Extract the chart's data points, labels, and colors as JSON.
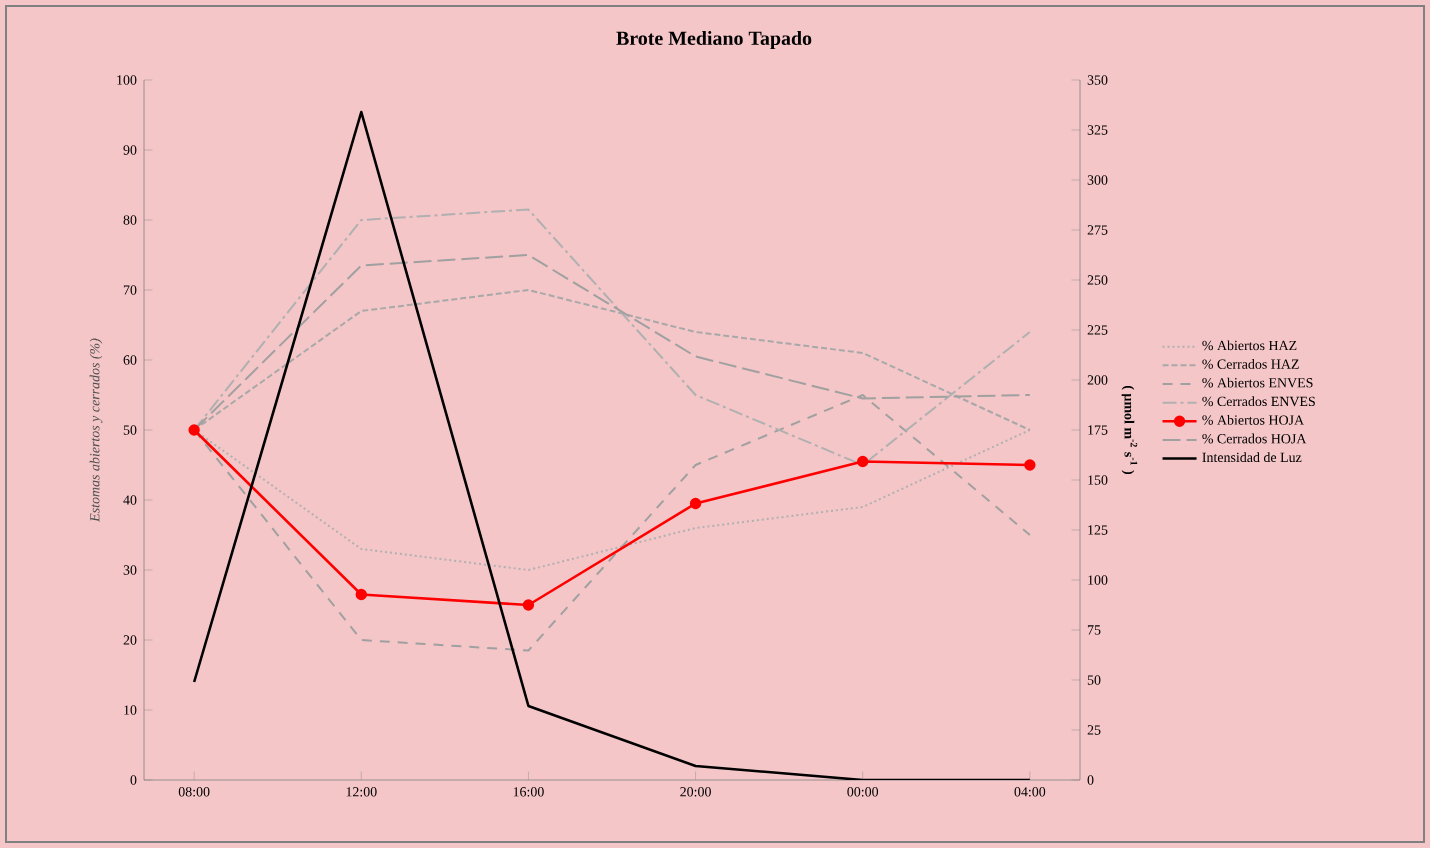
{
  "chart_data": {
    "type": "line",
    "title": "Brote Mediano Tapado",
    "ylabel": "Estomas abiertos y cerrados (%)",
    "y2label": "( µmol m$^{-2}$ s$^{-1}$ )",
    "categories": [
      "08:00",
      "12:00",
      "16:00",
      "20:00",
      "00:00",
      "04:00"
    ],
    "ylim": [
      0,
      100
    ],
    "yticks": [
      0,
      10,
      20,
      30,
      40,
      50,
      60,
      70,
      80,
      90,
      100
    ],
    "y2lim": [
      0,
      350
    ],
    "y2ticks": [
      0,
      25,
      50,
      75,
      100,
      125,
      150,
      175,
      200,
      225,
      250,
      275,
      300,
      325,
      350
    ],
    "legend": "right",
    "grid": false,
    "series": [
      {
        "name": "% Abiertos HAZ",
        "color": "#b0b0b0",
        "line_style": "dotted",
        "marker": "none",
        "values": [
          50,
          33,
          30,
          36,
          39,
          50
        ]
      },
      {
        "name": "% Cerrados HAZ",
        "color": "#a8a8a8",
        "line_style": "dashed",
        "marker": "none",
        "values": [
          50,
          67,
          70,
          64,
          61,
          50
        ]
      },
      {
        "name": "% Abiertos ENVES",
        "color": "#a0a0a0",
        "line_style": "dashed",
        "marker": "none",
        "values": [
          50,
          20,
          18.5,
          45,
          55,
          35
        ]
      },
      {
        "name": "% Cerrados ENVES",
        "color": "#b0b0b0",
        "line_style": "dashdot",
        "marker": "none",
        "values": [
          50,
          80,
          81.5,
          55,
          45,
          64
        ]
      },
      {
        "name": "% Abiertos HOJA",
        "color": "#ff0000",
        "line_style": "solid",
        "marker": "circle",
        "values": [
          50,
          26.5,
          25,
          39.5,
          45.5,
          45
        ]
      },
      {
        "name": "% Cerrados HOJA",
        "color": "#a0a0a0",
        "line_style": "dashed",
        "marker": "none",
        "values": [
          50,
          73.5,
          75,
          60.5,
          54.5,
          55
        ]
      },
      {
        "name": "Intensidad de Luz",
        "color": "#000000",
        "line_style": "solid",
        "marker": "none",
        "axis": "y2",
        "values": [
          49,
          334,
          37,
          7,
          0,
          0
        ]
      }
    ]
  }
}
